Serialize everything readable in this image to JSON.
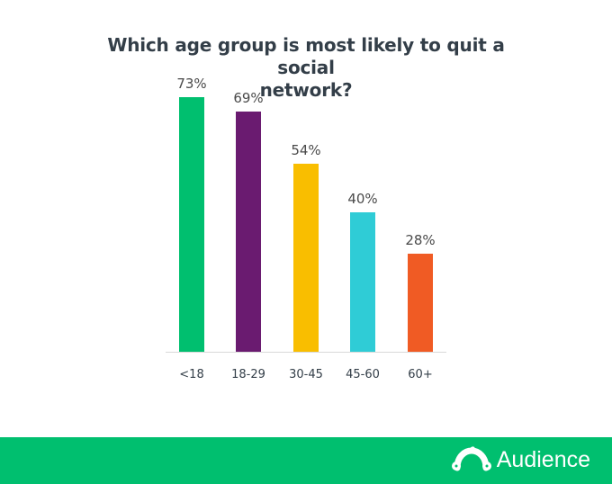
{
  "chart_data": {
    "type": "bar",
    "title": "Which age group is most likely to quit a social network?",
    "title_lines": [
      "Which age group is most likely to quit a social",
      "network?"
    ],
    "categories": [
      "<18",
      "18-29",
      "30-45",
      "45-60",
      "60+"
    ],
    "values": [
      73,
      69,
      54,
      40,
      28
    ],
    "value_labels": [
      "73%",
      "69%",
      "54%",
      "40%",
      "28%"
    ],
    "colors": [
      "#00bf6f",
      "#6a1b70",
      "#f9be00",
      "#2fccd6",
      "#f05b24"
    ],
    "xlabel": "",
    "ylabel": "",
    "ylim": [
      0,
      73
    ],
    "grid": false,
    "legend": "none"
  },
  "footer": {
    "brand": "Audience",
    "background": "#00bf6f"
  }
}
